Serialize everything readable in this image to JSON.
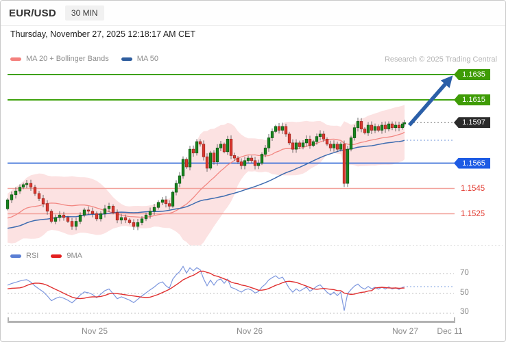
{
  "header": {
    "symbol": "EUR/USD",
    "timeframe": "30 MIN"
  },
  "timestamp": "Thursday, November 27, 2025 12:18:17 AM CET",
  "copyright": "Research © 2025 Trading Central",
  "legend": {
    "ma20_bollinger": {
      "label": "MA 20 + Bollinger Bands",
      "color": "#f4807d"
    },
    "ma50": {
      "label": "MA 50",
      "color": "#2e5d9e"
    }
  },
  "rsi_legend": {
    "rsi": {
      "label": "RSI",
      "color": "#5b7fd4"
    },
    "ma9": {
      "label": "9MA",
      "color": "#e32020"
    }
  },
  "price_labels": [
    {
      "text": "1.1635",
      "type": "resistance-tag",
      "bg": "#3f9c06"
    },
    {
      "text": "1.1615",
      "type": "resistance-tag",
      "bg": "#3f9c06"
    },
    {
      "text": "1.1597",
      "type": "last-price-tag",
      "bg": "#2b2b2b"
    },
    {
      "text": "1.1565",
      "type": "pivot-tag",
      "bg": "#1d5be4"
    },
    {
      "text": "1.1545",
      "type": "support-text",
      "color": "#e23b31"
    },
    {
      "text": "1.1525",
      "type": "support-text",
      "color": "#e23b31"
    }
  ],
  "rsi_axis": {
    "ticks": [
      "70",
      "50",
      "30"
    ]
  },
  "x_axis": {
    "labels": [
      "Nov 25",
      "Nov 26",
      "Nov 27",
      "Dec 11"
    ]
  },
  "chart_data": {
    "type": "candlestick",
    "title": "EUR/USD 30 MIN with MA20, Bollinger Bands, MA50 and RSI",
    "ylabel": "EUR/USD price",
    "levels": {
      "resistance": [
        1.1635,
        1.1615
      ],
      "last": 1.1597,
      "pivot": 1.1565,
      "support": [
        1.1545,
        1.1525
      ]
    },
    "indicators": [
      "MA 20",
      "Bollinger Bands (20,2)",
      "MA 50",
      "RSI 14",
      "RSI 9MA"
    ],
    "rsi_ticks": [
      70,
      50,
      30
    ],
    "x_dates": {
      "Nov 25": 137,
      "Nov 26": 363,
      "Nov 27": 590,
      "Dec 11": 655
    },
    "closes": [
      [
        10,
        1.1536
      ],
      [
        16,
        1.154
      ],
      [
        22,
        1.1543
      ],
      [
        28,
        1.1546
      ],
      [
        33,
        1.1548
      ],
      [
        38,
        1.1549
      ],
      [
        44,
        1.1546
      ],
      [
        50,
        1.1541
      ],
      [
        56,
        1.1537
      ],
      [
        62,
        1.1533
      ],
      [
        68,
        1.1527
      ],
      [
        74,
        1.1519
      ],
      [
        80,
        1.1522
      ],
      [
        86,
        1.1524
      ],
      [
        92,
        1.1522
      ],
      [
        98,
        1.1519
      ],
      [
        104,
        1.1515
      ],
      [
        110,
        1.1519
      ],
      [
        116,
        1.1524
      ],
      [
        122,
        1.1528
      ],
      [
        128,
        1.1527
      ],
      [
        134,
        1.1525
      ],
      [
        140,
        1.1521
      ],
      [
        146,
        1.1525
      ],
      [
        152,
        1.1529
      ],
      [
        158,
        1.1531
      ],
      [
        164,
        1.1526
      ],
      [
        170,
        1.152
      ],
      [
        176,
        1.1522
      ],
      [
        182,
        1.152
      ],
      [
        188,
        1.1518
      ],
      [
        194,
        1.1515
      ],
      [
        200,
        1.1518
      ],
      [
        206,
        1.1521
      ],
      [
        212,
        1.1524
      ],
      [
        218,
        1.1527
      ],
      [
        224,
        1.153
      ],
      [
        230,
        1.1534
      ],
      [
        236,
        1.1536
      ],
      [
        241,
        1.1533
      ],
      [
        246,
        1.1531
      ],
      [
        251,
        1.1542
      ],
      [
        256,
        1.1549
      ],
      [
        261,
        1.1555
      ],
      [
        266,
        1.1568
      ],
      [
        271,
        1.1562
      ],
      [
        276,
        1.1576
      ],
      [
        281,
        1.1573
      ],
      [
        286,
        1.1582
      ],
      [
        291,
        1.158
      ],
      [
        296,
        1.157
      ],
      [
        301,
        1.1561
      ],
      [
        306,
        1.1573
      ],
      [
        311,
        1.1566
      ],
      [
        316,
        1.1577
      ],
      [
        321,
        1.158
      ],
      [
        326,
        1.1574
      ],
      [
        331,
        1.1584
      ],
      [
        336,
        1.1571
      ],
      [
        341,
        1.1569
      ],
      [
        346,
        1.1566
      ],
      [
        351,
        1.1563
      ],
      [
        356,
        1.1567
      ],
      [
        361,
        1.1569
      ],
      [
        366,
        1.1567
      ],
      [
        371,
        1.1563
      ],
      [
        376,
        1.1565
      ],
      [
        381,
        1.1572
      ],
      [
        386,
        1.1577
      ],
      [
        391,
        1.1585
      ],
      [
        396,
        1.159
      ],
      [
        401,
        1.1594
      ],
      [
        406,
        1.1591
      ],
      [
        411,
        1.1594
      ],
      [
        416,
        1.1588
      ],
      [
        421,
        1.1581
      ],
      [
        426,
        1.1576
      ],
      [
        431,
        1.1581
      ],
      [
        436,
        1.1578
      ],
      [
        441,
        1.1581
      ],
      [
        446,
        1.1584
      ],
      [
        451,
        1.1579
      ],
      [
        456,
        1.1582
      ],
      [
        461,
        1.1586
      ],
      [
        466,
        1.1588
      ],
      [
        471,
        1.1584
      ],
      [
        476,
        1.158
      ],
      [
        481,
        1.1577
      ],
      [
        486,
        1.158
      ],
      [
        491,
        1.1576
      ],
      [
        496,
        1.158
      ],
      [
        501,
        1.1549
      ],
      [
        506,
        1.1576
      ],
      [
        511,
        1.1585
      ],
      [
        516,
        1.1593
      ],
      [
        521,
        1.1598
      ],
      [
        526,
        1.1592
      ],
      [
        531,
        1.1589
      ],
      [
        536,
        1.1595
      ],
      [
        541,
        1.1591
      ],
      [
        546,
        1.1594
      ],
      [
        551,
        1.1591
      ],
      [
        556,
        1.1595
      ],
      [
        561,
        1.1592
      ],
      [
        566,
        1.1596
      ],
      [
        571,
        1.1593
      ],
      [
        576,
        1.1595
      ],
      [
        581,
        1.1593
      ],
      [
        586,
        1.1596
      ],
      [
        589,
        1.1597
      ]
    ]
  }
}
